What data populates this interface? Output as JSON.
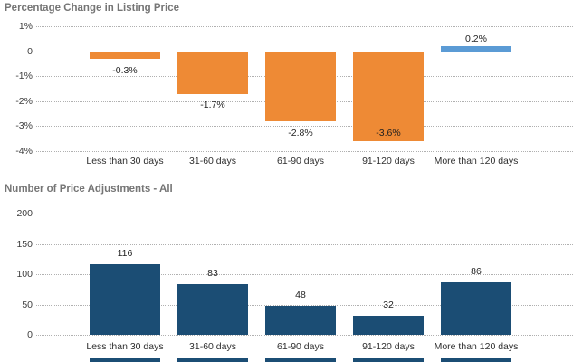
{
  "page": {
    "background": "#ffffff"
  },
  "colors": {
    "orange_bar": "#EE8A35",
    "positive_blue_bar": "#5B9BD5",
    "dark_navy_bar": "#1B4D74",
    "title_gray": "#757575",
    "tick_text": "#3d3d3d",
    "gridline": "#b0b0b0"
  },
  "chart_data": [
    {
      "type": "bar",
      "title": "Percentage Change in Listing Price",
      "categories": [
        "Less than 30 days",
        "31-60 days",
        "61-90 days",
        "91-120 days",
        "More than 120 days"
      ],
      "values": [
        -0.3,
        -1.7,
        -2.8,
        -3.6,
        0.2
      ],
      "value_labels": [
        "-0.3%",
        "-1.7%",
        "-2.8%",
        "-3.6%",
        "0.2%"
      ],
      "y_ticks": [
        {
          "label": "1%",
          "value": 1
        },
        {
          "label": "0",
          "value": 0
        },
        {
          "label": "-1%",
          "value": -1
        },
        {
          "label": "-2%",
          "value": -2
        },
        {
          "label": "-3%",
          "value": -3
        },
        {
          "label": "-4%",
          "value": -4
        }
      ],
      "ylim": [
        -4,
        1
      ],
      "xlabel": "",
      "ylabel": "",
      "grid": "dotted-horizontal",
      "legend": "none",
      "bar_colors": [
        "#EE8A35",
        "#EE8A35",
        "#EE8A35",
        "#EE8A35",
        "#5B9BD5"
      ]
    },
    {
      "type": "bar",
      "title": "Number of Price Adjustments - All",
      "categories": [
        "Less than 30 days",
        "31-60 days",
        "61-90 days",
        "91-120 days",
        "More than 120 days"
      ],
      "values": [
        116,
        83,
        48,
        32,
        86
      ],
      "value_labels": [
        "116",
        "83",
        "48",
        "32",
        "86"
      ],
      "y_ticks": [
        {
          "label": "200",
          "value": 200
        },
        {
          "label": "150",
          "value": 150
        },
        {
          "label": "100",
          "value": 100
        },
        {
          "label": "50",
          "value": 50
        },
        {
          "label": "0",
          "value": 0
        }
      ],
      "ylim": [
        0,
        200
      ],
      "xlabel": "",
      "ylabel": "",
      "grid": "dotted-horizontal",
      "legend": "none",
      "bar_colors": [
        "#1B4D74",
        "#1B4D74",
        "#1B4D74",
        "#1B4D74",
        "#1B4D74"
      ]
    }
  ],
  "partial_next_chart": {
    "cutoff_bar_count": 5,
    "color": "#1B4D74"
  }
}
